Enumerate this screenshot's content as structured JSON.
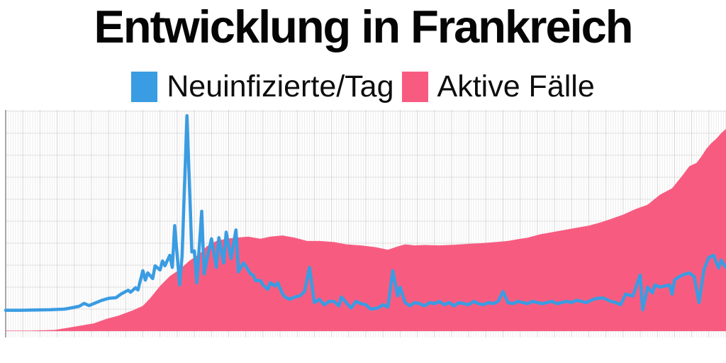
{
  "page": {
    "background": "#ffffff"
  },
  "title": "Entwicklung in Frankreich",
  "legend": {
    "position": "top-center",
    "items": [
      {
        "label": "Neuinfizierte/Tag",
        "color": "#3a9ce2"
      },
      {
        "label": "Aktive Fälle",
        "color": "#f75c80"
      }
    ]
  },
  "chart_data": {
    "type": "area",
    "title": "Entwicklung in Frankreich",
    "xlabel": "",
    "ylabel": "",
    "legend_position": "top",
    "x_axis": {
      "tick_labels_shown": false,
      "gridlines": "fine daily lines with darker weekly lines",
      "span_day_index": [
        0,
        294
      ]
    },
    "y_axis": {
      "tick_labels_shown": false,
      "gridline_divisions": 10,
      "ylim": [
        0,
        10
      ]
    },
    "units_note": "No numeric axis labels are visible in the image; y-values are estimated in horizontal-gridline units (1 unit = 1 gridline spacing), x in day-index of the fine vertical grid.",
    "grid": {
      "vertical_daily_color": "#ededed",
      "vertical_weekly_color": "#d3d3d3",
      "horizontal_color": "#dbdbdb",
      "axis_color": "#a8a8a8"
    },
    "series": [
      {
        "name": "Neuinfizierte/Tag",
        "type": "line",
        "color": "#3a9ce2",
        "stroke_width": 4.5,
        "points": [
          [
            0,
            0.95
          ],
          [
            6,
            0.95
          ],
          [
            12,
            0.96
          ],
          [
            18,
            0.97
          ],
          [
            24,
            1.0
          ],
          [
            27,
            1.06
          ],
          [
            30,
            1.13
          ],
          [
            32,
            1.26
          ],
          [
            34,
            1.16
          ],
          [
            37,
            1.3
          ],
          [
            39,
            1.39
          ],
          [
            42,
            1.49
          ],
          [
            45,
            1.52
          ],
          [
            47,
            1.68
          ],
          [
            50,
            1.86
          ],
          [
            51,
            1.77
          ],
          [
            53,
            1.97
          ],
          [
            54,
            1.87
          ],
          [
            56,
            2.75
          ],
          [
            57,
            2.32
          ],
          [
            58,
            2.65
          ],
          [
            60,
            2.39
          ],
          [
            61,
            2.97
          ],
          [
            63,
            2.78
          ],
          [
            64,
            3.19
          ],
          [
            65,
            2.97
          ],
          [
            67,
            3.45
          ],
          [
            68,
            2.9
          ],
          [
            69,
            4.8
          ],
          [
            71,
            2.1
          ],
          [
            72,
            3.4
          ],
          [
            74,
            9.8
          ],
          [
            76,
            3.6
          ],
          [
            77,
            3.65
          ],
          [
            78,
            2.2
          ],
          [
            80,
            5.45
          ],
          [
            81,
            2.6
          ],
          [
            82,
            3.2
          ],
          [
            84,
            4.2
          ],
          [
            86,
            2.9
          ],
          [
            87,
            4.25
          ],
          [
            89,
            3.1
          ],
          [
            90,
            4.5
          ],
          [
            92,
            3.3
          ],
          [
            94,
            4.6
          ],
          [
            95,
            2.7
          ],
          [
            97,
            3.1
          ],
          [
            98,
            2.95
          ],
          [
            100,
            2.6
          ],
          [
            101,
            2.55
          ],
          [
            102,
            2.3
          ],
          [
            104,
            2.3
          ],
          [
            105,
            2.1
          ],
          [
            107,
            1.9
          ],
          [
            108,
            2.2
          ],
          [
            110,
            2.05
          ],
          [
            111,
            2.2
          ],
          [
            113,
            1.7
          ],
          [
            114,
            1.55
          ],
          [
            116,
            1.45
          ],
          [
            118,
            1.55
          ],
          [
            120,
            1.6
          ],
          [
            122,
            1.8
          ],
          [
            124,
            2.9
          ],
          [
            126,
            1.3
          ],
          [
            128,
            1.45
          ],
          [
            130,
            1.2
          ],
          [
            132,
            1.35
          ],
          [
            134,
            1.35
          ],
          [
            136,
            1.15
          ],
          [
            137,
            1.55
          ],
          [
            139,
            1.3
          ],
          [
            141,
            1.05
          ],
          [
            143,
            1.35
          ],
          [
            145,
            1.25
          ],
          [
            147,
            1.2
          ],
          [
            149,
            1.0
          ],
          [
            152,
            1.05
          ],
          [
            154,
            1.2
          ],
          [
            156,
            1.1
          ],
          [
            158,
            2.75
          ],
          [
            160,
            1.6
          ],
          [
            161,
            2.0
          ],
          [
            163,
            1.3
          ],
          [
            165,
            1.15
          ],
          [
            167,
            1.3
          ],
          [
            169,
            1.25
          ],
          [
            171,
            1.15
          ],
          [
            173,
            1.3
          ],
          [
            175,
            1.25
          ],
          [
            177,
            1.35
          ],
          [
            179,
            1.2
          ],
          [
            181,
            1.3
          ],
          [
            183,
            1.15
          ],
          [
            185,
            1.3
          ],
          [
            187,
            1.25
          ],
          [
            189,
            1.2
          ],
          [
            191,
            1.35
          ],
          [
            193,
            1.25
          ],
          [
            195,
            1.2
          ],
          [
            197,
            1.3
          ],
          [
            199,
            1.25
          ],
          [
            201,
            1.35
          ],
          [
            203,
            1.8
          ],
          [
            205,
            1.3
          ],
          [
            207,
            1.25
          ],
          [
            209,
            1.35
          ],
          [
            211,
            1.3
          ],
          [
            213,
            1.25
          ],
          [
            215,
            1.35
          ],
          [
            217,
            1.3
          ],
          [
            219,
            1.25
          ],
          [
            221,
            1.3
          ],
          [
            223,
            1.35
          ],
          [
            225,
            1.25
          ],
          [
            227,
            1.3
          ],
          [
            229,
            1.35
          ],
          [
            231,
            1.3
          ],
          [
            233,
            1.4
          ],
          [
            235,
            1.35
          ],
          [
            237,
            1.3
          ],
          [
            240,
            1.45
          ],
          [
            242,
            1.5
          ],
          [
            244,
            1.5
          ],
          [
            247,
            1.35
          ],
          [
            249,
            1.3
          ],
          [
            251,
            1.2
          ],
          [
            253,
            1.68
          ],
          [
            256,
            1.6
          ],
          [
            259,
            2.55
          ],
          [
            260,
            0.97
          ],
          [
            262,
            2.0
          ],
          [
            264,
            1.74
          ],
          [
            265,
            2.1
          ],
          [
            267,
            2.0
          ],
          [
            269,
            2.05
          ],
          [
            271,
            2.1
          ],
          [
            272,
            1.68
          ],
          [
            273,
            2.32
          ],
          [
            275,
            2.48
          ],
          [
            277,
            2.58
          ],
          [
            279,
            2.65
          ],
          [
            281,
            2.48
          ],
          [
            283,
            1.3
          ],
          [
            285,
            2.8
          ],
          [
            287,
            3.35
          ],
          [
            289,
            3.45
          ],
          [
            290,
            3.13
          ],
          [
            291,
            2.87
          ],
          [
            292,
            3.23
          ],
          [
            294,
            2.9
          ]
        ]
      },
      {
        "name": "Aktive Fälle",
        "type": "area",
        "color": "#f75c80",
        "points": [
          [
            0,
            0.02
          ],
          [
            10,
            0.02
          ],
          [
            20,
            0.05
          ],
          [
            27,
            0.18
          ],
          [
            36,
            0.35
          ],
          [
            41,
            0.55
          ],
          [
            46,
            0.7
          ],
          [
            52,
            0.95
          ],
          [
            56,
            1.15
          ],
          [
            59,
            1.5
          ],
          [
            63,
            2.05
          ],
          [
            67,
            2.5
          ],
          [
            71,
            2.8
          ],
          [
            75,
            3.2
          ],
          [
            79,
            3.5
          ],
          [
            82,
            3.85
          ],
          [
            86,
            4.1
          ],
          [
            90,
            4.2
          ],
          [
            94,
            4.25
          ],
          [
            99,
            4.3
          ],
          [
            104,
            4.2
          ],
          [
            108,
            4.3
          ],
          [
            113,
            4.35
          ],
          [
            118,
            4.25
          ],
          [
            123,
            4.1
          ],
          [
            128,
            4.1
          ],
          [
            134,
            4.05
          ],
          [
            139,
            3.95
          ],
          [
            145,
            3.9
          ],
          [
            151,
            3.82
          ],
          [
            156,
            3.7
          ],
          [
            160,
            3.85
          ],
          [
            163,
            3.95
          ],
          [
            167,
            3.9
          ],
          [
            171,
            3.92
          ],
          [
            177,
            3.9
          ],
          [
            183,
            3.93
          ],
          [
            189,
            3.97
          ],
          [
            194,
            4.0
          ],
          [
            200,
            4.05
          ],
          [
            205,
            4.1
          ],
          [
            209,
            4.18
          ],
          [
            213,
            4.25
          ],
          [
            218,
            4.4
          ],
          [
            223,
            4.5
          ],
          [
            228,
            4.6
          ],
          [
            233,
            4.7
          ],
          [
            238,
            4.8
          ],
          [
            243,
            4.95
          ],
          [
            247,
            5.1
          ],
          [
            252,
            5.3
          ],
          [
            257,
            5.55
          ],
          [
            262,
            5.75
          ],
          [
            267,
            6.2
          ],
          [
            272,
            6.5
          ],
          [
            276,
            7.05
          ],
          [
            279,
            7.5
          ],
          [
            282,
            7.65
          ],
          [
            284,
            7.95
          ],
          [
            286,
            8.3
          ],
          [
            288,
            8.55
          ],
          [
            290,
            8.75
          ],
          [
            292,
            9.0
          ],
          [
            294,
            9.2
          ]
        ]
      }
    ]
  }
}
